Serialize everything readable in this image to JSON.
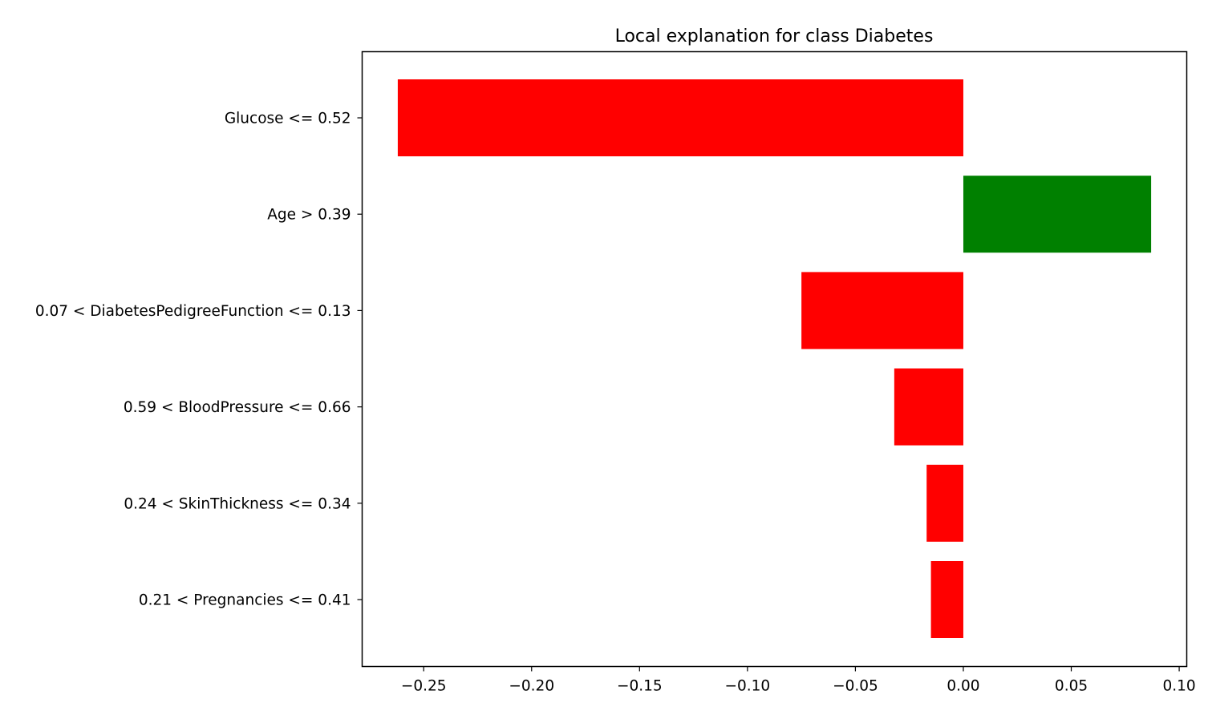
{
  "chart_data": {
    "type": "bar",
    "orientation": "horizontal",
    "title": "Local explanation for class Diabetes",
    "xlabel": "",
    "ylabel": "",
    "categories": [
      "Glucose <= 0.52",
      "Age > 0.39",
      "0.07 < DiabetesPedigreeFunction <= 0.13",
      "0.59 < BloodPressure <= 0.66",
      "0.24 < SkinThickness <= 0.34",
      "0.21 < Pregnancies <= 0.41"
    ],
    "values": [
      -0.262,
      0.087,
      -0.075,
      -0.032,
      -0.017,
      -0.015
    ],
    "xlim": [
      -0.2785,
      0.1035
    ],
    "xticks": [
      -0.25,
      -0.2,
      -0.15,
      -0.1,
      -0.05,
      0.0,
      0.05,
      0.1
    ],
    "xtick_labels": [
      "−0.25",
      "−0.20",
      "−0.15",
      "−0.10",
      "−0.05",
      "0.00",
      "0.05",
      "0.10"
    ],
    "colors": {
      "positive": "#008000",
      "negative": "#ff0000",
      "axis": "#000000"
    },
    "grid": false,
    "legend": "none"
  }
}
